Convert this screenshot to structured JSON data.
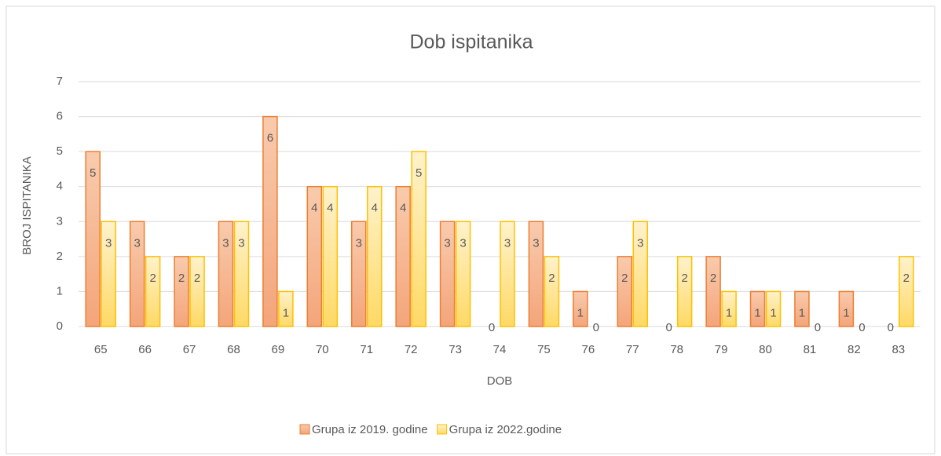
{
  "chart_data": {
    "type": "bar",
    "title": "Dob ispitanika",
    "x_label": "DOB",
    "y_label": "BROJ ISPITANIKA",
    "categories": [
      "65",
      "66",
      "67",
      "68",
      "69",
      "70",
      "71",
      "72",
      "73",
      "74",
      "75",
      "76",
      "77",
      "78",
      "79",
      "80",
      "81",
      "82",
      "83"
    ],
    "series": [
      {
        "name": "Grupa iz 2019. godine",
        "color": "#f4b183",
        "border": "#ed7d31",
        "values": [
          5,
          3,
          2,
          3,
          6,
          4,
          3,
          4,
          3,
          0,
          3,
          1,
          2,
          0,
          2,
          1,
          1,
          1,
          0
        ]
      },
      {
        "name": "Grupa iz 2022.godine",
        "color": "#ffe699",
        "border": "#ffc000",
        "values": [
          3,
          2,
          2,
          3,
          1,
          4,
          4,
          5,
          3,
          3,
          2,
          0,
          3,
          2,
          1,
          1,
          0,
          0,
          2
        ]
      }
    ],
    "ylim": [
      0,
      7
    ],
    "yticks": [
      0,
      1,
      2,
      3,
      4,
      5,
      6,
      7
    ],
    "grid": true,
    "legend": "bottom"
  }
}
